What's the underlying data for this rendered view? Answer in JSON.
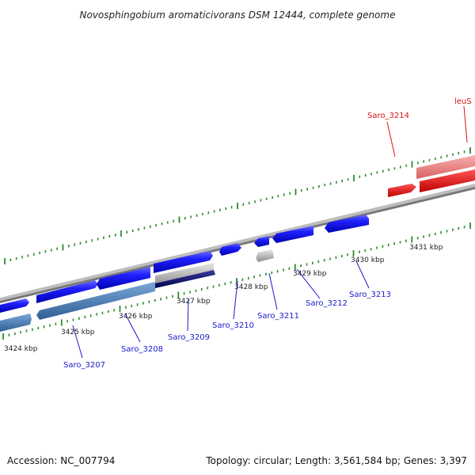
{
  "title": "Novosphingobium aromaticivorans DSM 12444, complete genome",
  "footer": {
    "accession": "Accession: NC_007794",
    "topology": "Topology: circular; Length: 3,561,584 bp; Genes: 3,397"
  },
  "kbp_labels": {
    "k3424": "3424 kbp",
    "k3425": "3425 kbp",
    "k3426": "3426 kbp",
    "k3427": "3427 kbp",
    "k3428": "3428 kbp",
    "k3429": "3429 kbp",
    "k3430": "3430 kbp",
    "k3431": "3431 kbp"
  },
  "genes": {
    "saro_3207": "Saro_3207",
    "saro_3208": "Saro_3208",
    "saro_3209": "Saro_3209",
    "saro_3210": "Saro_3210",
    "saro_3211": "Saro_3211",
    "saro_3212": "Saro_3212",
    "saro_3213": "Saro_3213",
    "saro_3214": "Saro_3214",
    "leus": "leuS"
  },
  "colors": {
    "forward_gene": "#1010ee",
    "reverse_gene": "#ee1111",
    "tick": "#2e8b2e",
    "backbone": "#8a8a8a"
  }
}
